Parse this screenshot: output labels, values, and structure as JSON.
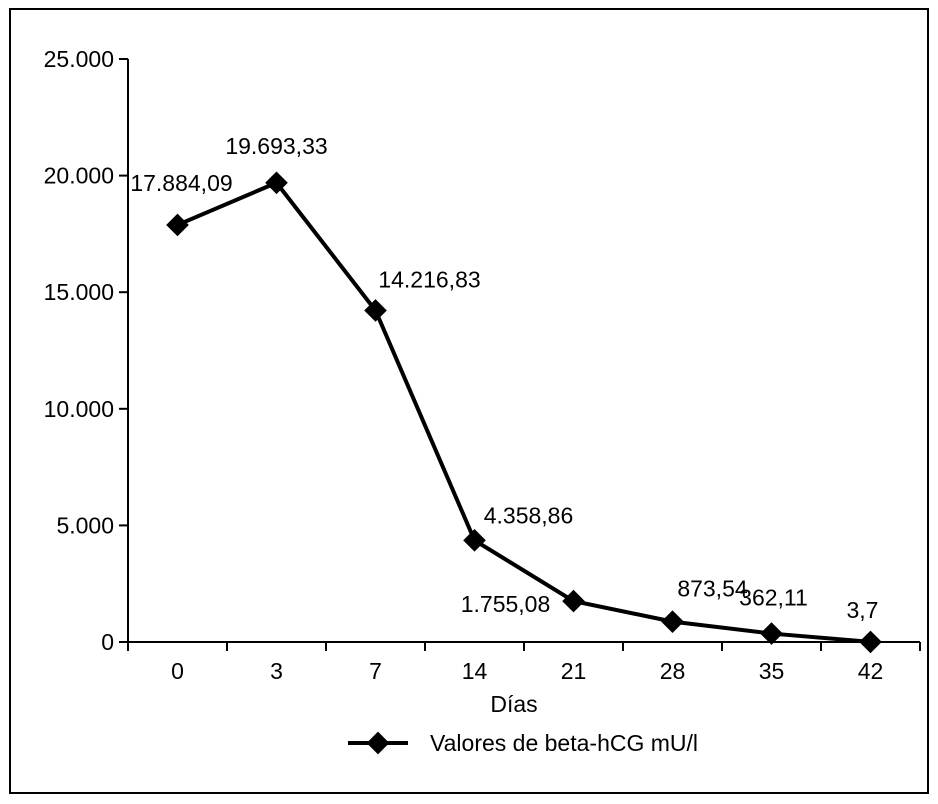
{
  "chart_data": {
    "type": "line",
    "title": "",
    "xlabel": "Días",
    "ylabel": "",
    "categories": [
      "0",
      "3",
      "7",
      "14",
      "21",
      "28",
      "35",
      "42"
    ],
    "series": [
      {
        "name": "Valores de beta-hCG mU/l",
        "values": [
          17884.09,
          19693.33,
          14216.83,
          4358.86,
          1755.08,
          873.54,
          362.11,
          3.7
        ],
        "labels": [
          "17.884,09",
          "19.693,33",
          "14.216,83",
          "4.358,86",
          "1.755,08",
          "873,54",
          "362,11",
          "3,7"
        ],
        "color": "#000000",
        "marker": "diamond"
      }
    ],
    "ylim": [
      0,
      25000
    ],
    "yticks": [
      0,
      5000,
      10000,
      15000,
      20000,
      25000
    ],
    "ytick_labels": [
      "0",
      "5.000",
      "10.000",
      "15.000",
      "20.000",
      "25.000"
    ],
    "grid": false,
    "legend_position": "bottom"
  }
}
